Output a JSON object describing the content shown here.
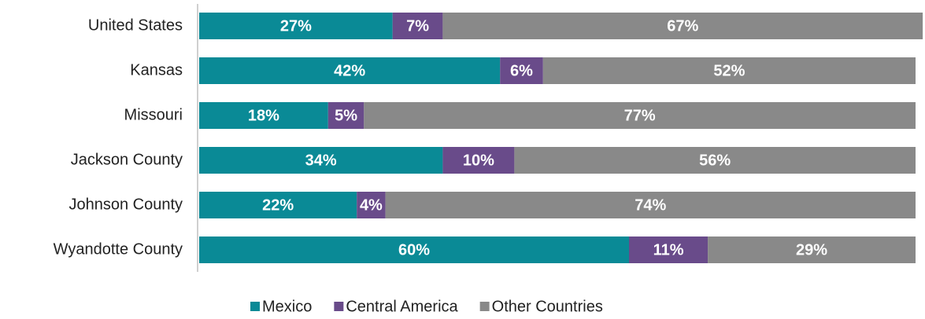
{
  "chart_data": {
    "type": "stacked-bar-horizontal",
    "categories": [
      "United States",
      "Kansas",
      "Missouri",
      "Jackson County",
      "Johnson County",
      "Wyandotte County"
    ],
    "xlim": [
      0,
      100
    ],
    "series": [
      {
        "name": "Mexico",
        "color": "#0a8a96",
        "values": [
          27,
          42,
          18,
          34,
          22,
          60
        ],
        "value_labels": [
          "27%",
          "42%",
          "18%",
          "34%",
          "22%",
          "60%"
        ]
      },
      {
        "name": "Central America",
        "color": "#694b8a",
        "values": [
          7,
          6,
          5,
          10,
          4,
          11
        ],
        "value_labels": [
          "7%",
          "6%",
          "5%",
          "10%",
          "4%",
          "11%"
        ]
      },
      {
        "name": "Other Countries",
        "color": "#898989",
        "values": [
          67,
          52,
          77,
          56,
          74,
          29
        ],
        "value_labels": [
          "67%",
          "52%",
          "77%",
          "56%",
          "74%",
          "29%"
        ]
      }
    ],
    "legend": "bottom"
  }
}
